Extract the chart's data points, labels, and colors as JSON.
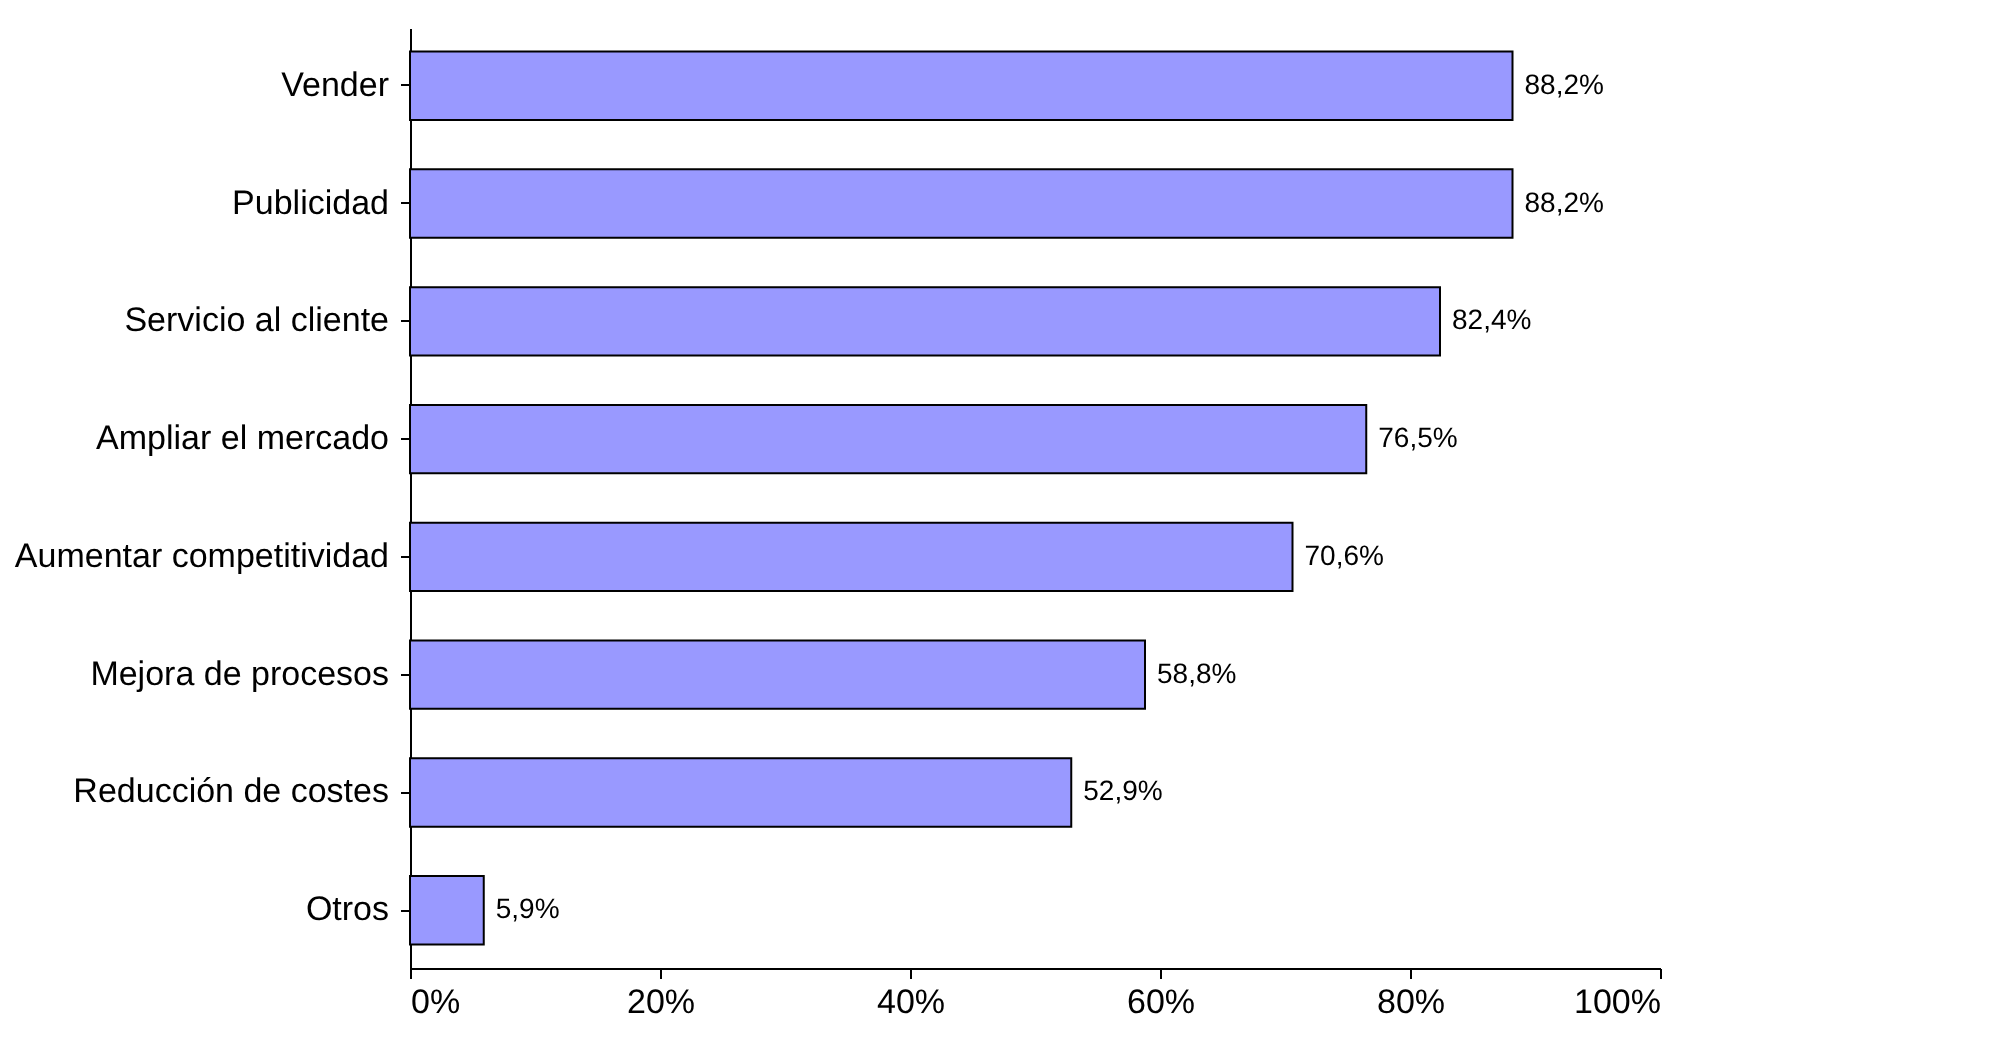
{
  "chart_data": {
    "type": "bar",
    "orientation": "horizontal",
    "categories": [
      "Vender",
      "Publicidad",
      "Servicio al cliente",
      "Ampliar el mercado",
      "Aumentar competitividad",
      "Mejora de procesos",
      "Reducción de costes",
      "Otros"
    ],
    "values": [
      88.2,
      88.2,
      82.4,
      76.5,
      70.6,
      58.8,
      52.9,
      5.9
    ],
    "value_labels": [
      "88,2%",
      "88,2%",
      "82,4%",
      "76,5%",
      "70,6%",
      "58,8%",
      "52,9%",
      "5,9%"
    ],
    "color": "#9999ff",
    "xlim": [
      0,
      100
    ],
    "xticks": [
      {
        "value": 0,
        "label": "0%"
      },
      {
        "value": 20,
        "label": "20%"
      },
      {
        "value": 40,
        "label": "40%"
      },
      {
        "value": 60,
        "label": "60%"
      },
      {
        "value": 80,
        "label": "80%"
      },
      {
        "value": 100,
        "label": "100%"
      }
    ],
    "grid": false
  }
}
